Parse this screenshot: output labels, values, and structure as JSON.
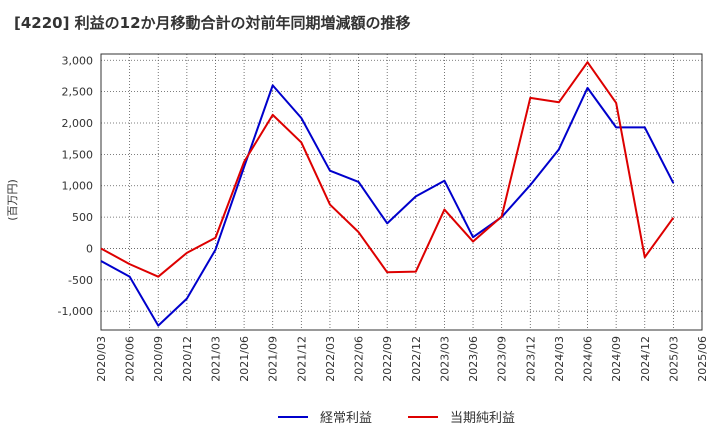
{
  "chart_data": {
    "type": "line",
    "title": "[4220]  利益の12か月移動合計の対前年同期増減額の推移",
    "ylabel": "(百万円)",
    "xlabel": "",
    "ylim": [
      -1300,
      3100
    ],
    "yticks": [
      3000,
      2500,
      2000,
      1500,
      1000,
      500,
      0,
      -500,
      -1000
    ],
    "ytick_labels": [
      "3,000",
      "2,500",
      "2,000",
      "1,500",
      "1,000",
      "500",
      "0",
      "-500",
      "-1,000"
    ],
    "categories": [
      "2020/03",
      "2020/06",
      "2020/09",
      "2020/12",
      "2021/03",
      "2021/06",
      "2021/09",
      "2021/12",
      "2022/03",
      "2022/06",
      "2022/09",
      "2022/12",
      "2023/03",
      "2023/06",
      "2023/09",
      "2023/12",
      "2024/03",
      "2024/06",
      "2024/09",
      "2024/12",
      "2025/03",
      "2025/06"
    ],
    "grid": true,
    "legend_position": "bottom-center",
    "series": [
      {
        "name": "経常利益",
        "color": "#0000cc",
        "values": [
          -200,
          -450,
          -1230,
          -800,
          -20,
          1300,
          2600,
          2080,
          1240,
          1060,
          400,
          830,
          1080,
          180,
          500,
          1010,
          1580,
          2560,
          1930,
          1930,
          1040,
          null
        ]
      },
      {
        "name": "当期純利益",
        "color": "#dd0000",
        "values": [
          0,
          -250,
          -450,
          -70,
          170,
          1380,
          2130,
          1690,
          700,
          260,
          -380,
          -370,
          620,
          110,
          510,
          2400,
          2330,
          2970,
          2320,
          -140,
          490,
          null
        ]
      }
    ]
  }
}
